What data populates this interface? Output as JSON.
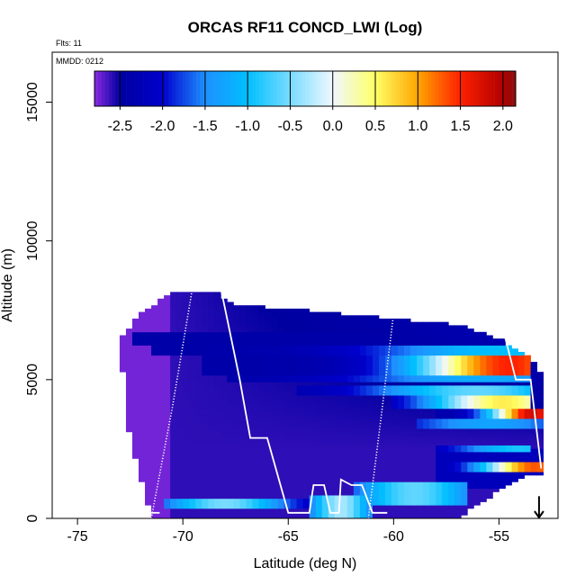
{
  "chart_data": {
    "type": "heatmap",
    "title": "ORCAS RF11 CONCD_LWI (Log)",
    "annotations": {
      "flights": "Flts: 11",
      "date": "MMDD: 0212"
    },
    "xlabel": "Latitude (deg N)",
    "ylabel": "Altitude (m)",
    "xlim": [
      -76.2,
      -52.2
    ],
    "ylim": [
      0,
      16800
    ],
    "xticks": [
      -75,
      -70,
      -65,
      -60,
      -55
    ],
    "xtick_labels": [
      "-75",
      "-70",
      "-65",
      "-60",
      "-55"
    ],
    "yticks": [
      0,
      5000,
      10000,
      15000
    ],
    "ytick_labels": [
      "0",
      "5000",
      "10000",
      "15000"
    ],
    "colorbar": {
      "range": [
        -2.8,
        2.15
      ],
      "ticks": [
        -2.5,
        -2.0,
        -1.5,
        -1.0,
        -0.5,
        0.0,
        0.5,
        1.0,
        1.5,
        2.0
      ],
      "tick_labels": [
        "-2.5",
        "-2.0",
        "-1.5",
        "-1.0",
        "-0.5",
        "0.0",
        "0.5",
        "1.0",
        "1.5",
        "2.0"
      ],
      "colors": [
        "#8a2be2",
        "#0000a0",
        "#0000cd",
        "#1e90ff",
        "#00bfff",
        "#f0f8ff",
        "#ffff66",
        "#ffa500",
        "#ff2000",
        "#b00000",
        "#8b1010"
      ],
      "color_stops": [
        -2.8,
        -2.5,
        -2.0,
        -1.5,
        -1.0,
        0.0,
        0.5,
        1.0,
        1.5,
        2.0,
        2.15
      ]
    },
    "grid": {
      "lat_start": -73.0,
      "lat_end": -53.0,
      "lat_step": 0.3,
      "alt_start": 0,
      "alt_step": 120
    },
    "envelope": [
      {
        "lat": -73.0,
        "min_alt": 6300,
        "max_alt": 6400
      },
      {
        "lat": -72.5,
        "min_alt": 2800,
        "max_alt": 6900
      },
      {
        "lat": -72.0,
        "min_alt": 1500,
        "max_alt": 7400
      },
      {
        "lat": -71.5,
        "min_alt": 0,
        "max_alt": 7600
      },
      {
        "lat": -70.5,
        "min_alt": 0,
        "max_alt": 8200
      },
      {
        "lat": -68.5,
        "min_alt": 0,
        "max_alt": 8200
      },
      {
        "lat": -67.5,
        "min_alt": 0,
        "max_alt": 7700
      },
      {
        "lat": -64.0,
        "min_alt": 0,
        "max_alt": 7500
      },
      {
        "lat": -60.0,
        "min_alt": 0,
        "max_alt": 7200
      },
      {
        "lat": -57.0,
        "min_alt": 0,
        "max_alt": 7000
      },
      {
        "lat": -55.0,
        "min_alt": 1000,
        "max_alt": 6500
      },
      {
        "lat": -53.5,
        "min_alt": 1600,
        "max_alt": 5800
      },
      {
        "lat": -53.0,
        "min_alt": 1600,
        "max_alt": 5200
      }
    ],
    "bands": [
      {
        "alt_lo": 6300,
        "alt_hi": 6700,
        "lat_from": -72.5,
        "lat_to": -60.0,
        "peak": -2.4,
        "peak_lat": -70.0,
        "width": 4.0
      },
      {
        "alt_lo": 5900,
        "alt_hi": 6300,
        "lat_from": -71.5,
        "lat_to": -53.5,
        "peak": -1.0,
        "peak_lat": -55.0,
        "width": 6.0
      },
      {
        "alt_lo": 5200,
        "alt_hi": 5900,
        "lat_from": -69.0,
        "lat_to": -53.5,
        "peak": 1.5,
        "peak_lat": -54.5,
        "width": 4.5
      },
      {
        "alt_lo": 4950,
        "alt_hi": 5200,
        "lat_from": -68.0,
        "lat_to": -53.5,
        "peak": -1.2,
        "peak_lat": -56.0,
        "width": 6.0
      },
      {
        "alt_lo": 4450,
        "alt_hi": 4750,
        "lat_from": -64.5,
        "lat_to": -53.5,
        "peak": -0.6,
        "peak_lat": -56.0,
        "width": 5.0
      },
      {
        "alt_lo": 4000,
        "alt_hi": 4400,
        "lat_from": -60.0,
        "lat_to": -53.5,
        "peak": 0.6,
        "peak_lat": -54.8,
        "width": 3.5
      },
      {
        "alt_lo": 3650,
        "alt_hi": 3950,
        "lat_from": -58.0,
        "lat_to": -53.0,
        "peak": 1.8,
        "peak_lat": -53.4,
        "width": 2.0
      },
      {
        "alt_lo": 3300,
        "alt_hi": 3600,
        "lat_from": -59.0,
        "lat_to": -53.0,
        "peak": -1.3,
        "peak_lat": -55.5,
        "width": 4.0
      },
      {
        "alt_lo": 2400,
        "alt_hi": 2700,
        "lat_from": -58.0,
        "lat_to": -53.5,
        "peak": -0.9,
        "peak_lat": -54.0,
        "width": 3.0
      },
      {
        "alt_lo": 1700,
        "alt_hi": 2000,
        "lat_from": -58.0,
        "lat_to": -53.0,
        "peak": 1.3,
        "peak_lat": -53.3,
        "width": 2.5
      },
      {
        "alt_lo": 500,
        "alt_hi": 1300,
        "lat_from": -62.0,
        "lat_to": -56.5,
        "peak": -0.6,
        "peak_lat": -59.0,
        "width": 3.0
      },
      {
        "alt_lo": 400,
        "alt_hi": 700,
        "lat_from": -71.0,
        "lat_to": -63.0,
        "peak": -0.5,
        "peak_lat": -68.0,
        "width": 3.0
      },
      {
        "alt_lo": 0,
        "alt_hi": 900,
        "lat_from": -64.0,
        "lat_to": -61.0,
        "peak": -0.3,
        "peak_lat": -62.5,
        "width": 1.5
      }
    ],
    "flight_tracks": [
      {
        "style": "dotted",
        "points": [
          [
            -71.5,
            0
          ],
          [
            -70.5,
            4000
          ],
          [
            -69.5,
            8500
          ]
        ]
      },
      {
        "style": "solid",
        "points": [
          [
            -68.2,
            8300
          ],
          [
            -67.3,
            5000
          ],
          [
            -66.8,
            2900
          ],
          [
            -66.0,
            2900
          ],
          [
            -65.0,
            200
          ],
          [
            -64.0,
            200
          ],
          [
            -63.8,
            1200
          ],
          [
            -63.3,
            1200
          ],
          [
            -63.0,
            200
          ],
          [
            -62.6,
            200
          ],
          [
            -62.5,
            1400
          ],
          [
            -62.0,
            1200
          ],
          [
            -61.5,
            1200
          ],
          [
            -61.0,
            200
          ],
          [
            -60.3,
            200
          ]
        ]
      },
      {
        "style": "dotted",
        "points": [
          [
            -61.2,
            0
          ],
          [
            -60.6,
            3600
          ],
          [
            -60.0,
            7400
          ]
        ]
      },
      {
        "style": "solid",
        "points": [
          [
            -54.8,
            6800
          ],
          [
            -54.2,
            5000
          ],
          [
            -53.5,
            5000
          ],
          [
            -53.0,
            1800
          ]
        ]
      },
      {
        "style": "solid",
        "points": [
          [
            -71.5,
            200
          ],
          [
            -71.1,
            200
          ]
        ]
      }
    ],
    "marker": {
      "symbol": "down-arrow",
      "lat": -53.1,
      "alt_from": 800,
      "alt_to": 0
    }
  }
}
